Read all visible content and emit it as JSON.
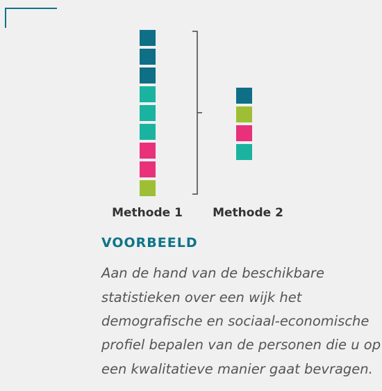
{
  "diagram": {
    "methods": [
      {
        "label": "Methode 1"
      },
      {
        "label": "Methode 2"
      }
    ],
    "example": {
      "heading": "VOORBEELD",
      "lines": [
        "Aan de hand van de beschikbare",
        "statistieken over een wijk het",
        "demografische en sociaal-economische",
        "profiel bepalen van de personen die u op",
        "een kwalitatieve manier gaat bevragen."
      ]
    }
  }
}
